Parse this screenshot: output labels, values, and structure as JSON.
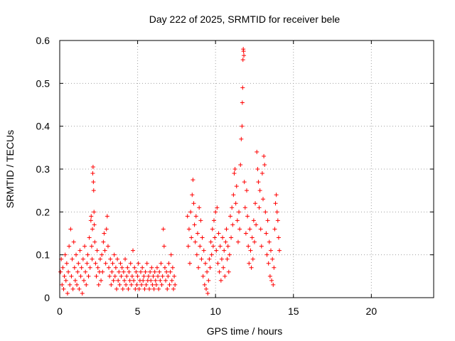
{
  "chart_data": {
    "type": "scatter",
    "title": "Day 222 of 2025, SRMTID for receiver bele",
    "xlabel": "GPS time / hours",
    "ylabel": "SRMTID / TECUs",
    "xlim": [
      0,
      24
    ],
    "ylim": [
      0,
      0.6
    ],
    "xticks": [
      0,
      5,
      10,
      15,
      20
    ],
    "xtick_labels": [
      "0",
      "5",
      "10",
      "15",
      "20"
    ],
    "yticks": [
      0,
      0.1,
      0.2,
      0.3,
      0.4,
      0.5,
      0.6
    ],
    "ytick_labels": [
      "0",
      "0.1",
      "0.2",
      "0.3",
      "0.4",
      "0.5",
      "0.6"
    ],
    "grid": true,
    "marker": "+",
    "color": "#ff0000",
    "series": [
      {
        "name": "SRMTID",
        "points": [
          [
            0.05,
            0.06
          ],
          [
            0.1,
            0.09
          ],
          [
            0.15,
            0.03
          ],
          [
            0.2,
            0.07
          ],
          [
            0.25,
            0.02
          ],
          [
            0.3,
            0.05
          ],
          [
            0.35,
            0.1
          ],
          [
            0.4,
            0.04
          ],
          [
            0.45,
            0.08
          ],
          [
            0.5,
            0.01
          ],
          [
            0.55,
            0.06
          ],
          [
            0.6,
            0.12
          ],
          [
            0.65,
            0.03
          ],
          [
            0.7,
            0.16
          ],
          [
            0.75,
            0.05
          ],
          [
            0.8,
            0.09
          ],
          [
            0.85,
            0.02
          ],
          [
            0.9,
            0.13
          ],
          [
            0.95,
            0.07
          ],
          [
            1.0,
            0.04
          ],
          [
            1.05,
            0.1
          ],
          [
            1.1,
            0.03
          ],
          [
            1.15,
            0.06
          ],
          [
            1.2,
            0.08
          ],
          [
            1.25,
            0.02
          ],
          [
            1.3,
            0.11
          ],
          [
            1.35,
            0.05
          ],
          [
            1.4,
            0.07
          ],
          [
            1.45,
            0.01
          ],
          [
            1.5,
            0.09
          ],
          [
            1.55,
            0.04
          ],
          [
            1.6,
            0.12
          ],
          [
            1.65,
            0.06
          ],
          [
            1.7,
            0.03
          ],
          [
            1.75,
            0.08
          ],
          [
            1.8,
            0.1
          ],
          [
            1.85,
            0.05
          ],
          [
            1.9,
            0.14
          ],
          [
            1.95,
            0.07
          ],
          [
            2.0,
            0.18
          ],
          [
            2.02,
            0.19
          ],
          [
            2.05,
            0.12
          ],
          [
            2.08,
            0.09
          ],
          [
            2.1,
            0.16
          ],
          [
            2.12,
            0.29
          ],
          [
            2.14,
            0.305
          ],
          [
            2.16,
            0.27
          ],
          [
            2.18,
            0.25
          ],
          [
            2.2,
            0.2
          ],
          [
            2.22,
            0.17
          ],
          [
            2.25,
            0.13
          ],
          [
            2.3,
            0.08
          ],
          [
            2.35,
            0.05
          ],
          [
            2.4,
            0.11
          ],
          [
            2.45,
            0.07
          ],
          [
            2.5,
            0.03
          ],
          [
            2.55,
            0.06
          ],
          [
            2.6,
            0.09
          ],
          [
            2.65,
            0.04
          ],
          [
            2.7,
            0.1
          ],
          [
            2.75,
            0.06
          ],
          [
            2.8,
            0.13
          ],
          [
            2.85,
            0.15
          ],
          [
            2.9,
            0.11
          ],
          [
            2.95,
            0.08
          ],
          [
            3.0,
            0.16
          ],
          [
            3.05,
            0.19
          ],
          [
            3.1,
            0.12
          ],
          [
            3.15,
            0.07
          ],
          [
            3.2,
            0.05
          ],
          [
            3.25,
            0.09
          ],
          [
            3.3,
            0.03
          ],
          [
            3.35,
            0.06
          ],
          [
            3.4,
            0.08
          ],
          [
            3.45,
            0.04
          ],
          [
            3.5,
            0.1
          ],
          [
            3.55,
            0.05
          ],
          [
            3.6,
            0.07
          ],
          [
            3.65,
            0.02
          ],
          [
            3.7,
            0.09
          ],
          [
            3.75,
            0.04
          ],
          [
            3.8,
            0.06
          ],
          [
            3.85,
            0.03
          ],
          [
            3.9,
            0.08
          ],
          [
            3.95,
            0.05
          ],
          [
            4.0,
            0.07
          ],
          [
            4.05,
            0.02
          ],
          [
            4.1,
            0.06
          ],
          [
            4.15,
            0.04
          ],
          [
            4.2,
            0.09
          ],
          [
            4.25,
            0.03
          ],
          [
            4.3,
            0.05
          ],
          [
            4.35,
            0.07
          ],
          [
            4.4,
            0.02
          ],
          [
            4.45,
            0.06
          ],
          [
            4.5,
            0.04
          ],
          [
            4.55,
            0.08
          ],
          [
            4.6,
            0.03
          ],
          [
            4.65,
            0.05
          ],
          [
            4.7,
            0.11
          ],
          [
            4.75,
            0.04
          ],
          [
            4.8,
            0.07
          ],
          [
            4.85,
            0.02
          ],
          [
            4.9,
            0.06
          ],
          [
            4.95,
            0.03
          ],
          [
            5.0,
            0.05
          ],
          [
            5.05,
            0.08
          ],
          [
            5.1,
            0.02
          ],
          [
            5.15,
            0.04
          ],
          [
            5.2,
            0.06
          ],
          [
            5.25,
            0.03
          ],
          [
            5.3,
            0.07
          ],
          [
            5.35,
            0.04
          ],
          [
            5.4,
            0.05
          ],
          [
            5.45,
            0.02
          ],
          [
            5.5,
            0.06
          ],
          [
            5.55,
            0.03
          ],
          [
            5.6,
            0.08
          ],
          [
            5.65,
            0.04
          ],
          [
            5.7,
            0.05
          ],
          [
            5.75,
            0.02
          ],
          [
            5.8,
            0.06
          ],
          [
            5.85,
            0.04
          ],
          [
            5.9,
            0.07
          ],
          [
            5.95,
            0.03
          ],
          [
            6.0,
            0.05
          ],
          [
            6.05,
            0.02
          ],
          [
            6.1,
            0.06
          ],
          [
            6.15,
            0.04
          ],
          [
            6.2,
            0.03
          ],
          [
            6.25,
            0.07
          ],
          [
            6.3,
            0.05
          ],
          [
            6.35,
            0.02
          ],
          [
            6.4,
            0.06
          ],
          [
            6.45,
            0.04
          ],
          [
            6.5,
            0.08
          ],
          [
            6.55,
            0.03
          ],
          [
            6.6,
            0.05
          ],
          [
            6.65,
            0.16
          ],
          [
            6.7,
            0.12
          ],
          [
            6.75,
            0.07
          ],
          [
            6.8,
            0.04
          ],
          [
            6.85,
            0.06
          ],
          [
            6.9,
            0.02
          ],
          [
            6.95,
            0.05
          ],
          [
            7.0,
            0.08
          ],
          [
            7.05,
            0.03
          ],
          [
            7.1,
            0.06
          ],
          [
            7.15,
            0.1
          ],
          [
            7.2,
            0.04
          ],
          [
            7.25,
            0.07
          ],
          [
            7.3,
            0.02
          ],
          [
            7.35,
            0.05
          ],
          [
            7.4,
            0.03
          ],
          [
            8.2,
            0.19
          ],
          [
            8.25,
            0.12
          ],
          [
            8.3,
            0.16
          ],
          [
            8.35,
            0.08
          ],
          [
            8.4,
            0.2
          ],
          [
            8.45,
            0.14
          ],
          [
            8.5,
            0.24
          ],
          [
            8.55,
            0.275
          ],
          [
            8.6,
            0.22
          ],
          [
            8.65,
            0.17
          ],
          [
            8.7,
            0.13
          ],
          [
            8.75,
            0.19
          ],
          [
            8.8,
            0.1
          ],
          [
            8.85,
            0.15
          ],
          [
            8.9,
            0.07
          ],
          [
            8.95,
            0.21
          ],
          [
            9.0,
            0.12
          ],
          [
            9.05,
            0.18
          ],
          [
            9.1,
            0.09
          ],
          [
            9.15,
            0.14
          ],
          [
            9.2,
            0.05
          ],
          [
            9.25,
            0.11
          ],
          [
            9.3,
            0.03
          ],
          [
            9.35,
            0.08
          ],
          [
            9.4,
            0.02
          ],
          [
            9.45,
            0.06
          ],
          [
            9.5,
            0.01
          ],
          [
            9.55,
            0.04
          ],
          [
            9.6,
            0.09
          ],
          [
            9.65,
            0.07
          ],
          [
            9.7,
            0.13
          ],
          [
            9.75,
            0.1
          ],
          [
            9.8,
            0.16
          ],
          [
            9.85,
            0.12
          ],
          [
            9.9,
            0.18
          ],
          [
            9.95,
            0.14
          ],
          [
            10.0,
            0.2
          ],
          [
            10.05,
            0.11
          ],
          [
            10.1,
            0.21
          ],
          [
            10.15,
            0.08
          ],
          [
            10.2,
            0.15
          ],
          [
            10.25,
            0.06
          ],
          [
            10.3,
            0.12
          ],
          [
            10.35,
            0.04
          ],
          [
            10.4,
            0.09
          ],
          [
            10.45,
            0.14
          ],
          [
            10.5,
            0.07
          ],
          [
            10.55,
            0.11
          ],
          [
            10.6,
            0.05
          ],
          [
            10.65,
            0.13
          ],
          [
            10.7,
            0.16
          ],
          [
            10.75,
            0.09
          ],
          [
            10.8,
            0.12
          ],
          [
            10.85,
            0.06
          ],
          [
            10.9,
            0.1
          ],
          [
            10.95,
            0.19
          ],
          [
            11.0,
            0.14
          ],
          [
            11.05,
            0.21
          ],
          [
            11.1,
            0.17
          ],
          [
            11.15,
            0.24
          ],
          [
            11.2,
            0.29
          ],
          [
            11.25,
            0.3
          ],
          [
            11.3,
            0.22
          ],
          [
            11.35,
            0.26
          ],
          [
            11.4,
            0.18
          ],
          [
            11.45,
            0.13
          ],
          [
            11.5,
            0.2
          ],
          [
            11.55,
            0.16
          ],
          [
            11.6,
            0.31
          ],
          [
            11.65,
            0.37
          ],
          [
            11.7,
            0.4
          ],
          [
            11.72,
            0.455
          ],
          [
            11.74,
            0.49
          ],
          [
            11.76,
            0.555
          ],
          [
            11.78,
            0.58
          ],
          [
            11.8,
            0.575
          ],
          [
            11.82,
            0.565
          ],
          [
            11.85,
            0.27
          ],
          [
            11.9,
            0.21
          ],
          [
            11.95,
            0.15
          ],
          [
            12.0,
            0.25
          ],
          [
            12.05,
            0.19
          ],
          [
            12.1,
            0.12
          ],
          [
            12.15,
            0.08
          ],
          [
            12.2,
            0.16
          ],
          [
            12.25,
            0.11
          ],
          [
            12.3,
            0.07
          ],
          [
            12.35,
            0.14
          ],
          [
            12.4,
            0.09
          ],
          [
            12.45,
            0.18
          ],
          [
            12.5,
            0.13
          ],
          [
            12.55,
            0.22
          ],
          [
            12.6,
            0.17
          ],
          [
            12.65,
            0.34
          ],
          [
            12.7,
            0.3
          ],
          [
            12.75,
            0.27
          ],
          [
            12.8,
            0.21
          ],
          [
            12.85,
            0.25
          ],
          [
            12.9,
            0.16
          ],
          [
            12.95,
            0.12
          ],
          [
            13.0,
            0.29
          ],
          [
            13.05,
            0.23
          ],
          [
            13.1,
            0.33
          ],
          [
            13.15,
            0.31
          ],
          [
            13.2,
            0.2
          ],
          [
            13.25,
            0.15
          ],
          [
            13.3,
            0.1
          ],
          [
            13.35,
            0.18
          ],
          [
            13.4,
            0.08
          ],
          [
            13.45,
            0.13
          ],
          [
            13.5,
            0.05
          ],
          [
            13.55,
            0.11
          ],
          [
            13.6,
            0.04
          ],
          [
            13.65,
            0.09
          ],
          [
            13.7,
            0.03
          ],
          [
            13.75,
            0.07
          ],
          [
            13.8,
            0.16
          ],
          [
            13.85,
            0.22
          ],
          [
            13.9,
            0.24
          ],
          [
            13.95,
            0.2
          ],
          [
            14.0,
            0.18
          ],
          [
            14.05,
            0.14
          ],
          [
            14.1,
            0.11
          ]
        ]
      }
    ]
  }
}
